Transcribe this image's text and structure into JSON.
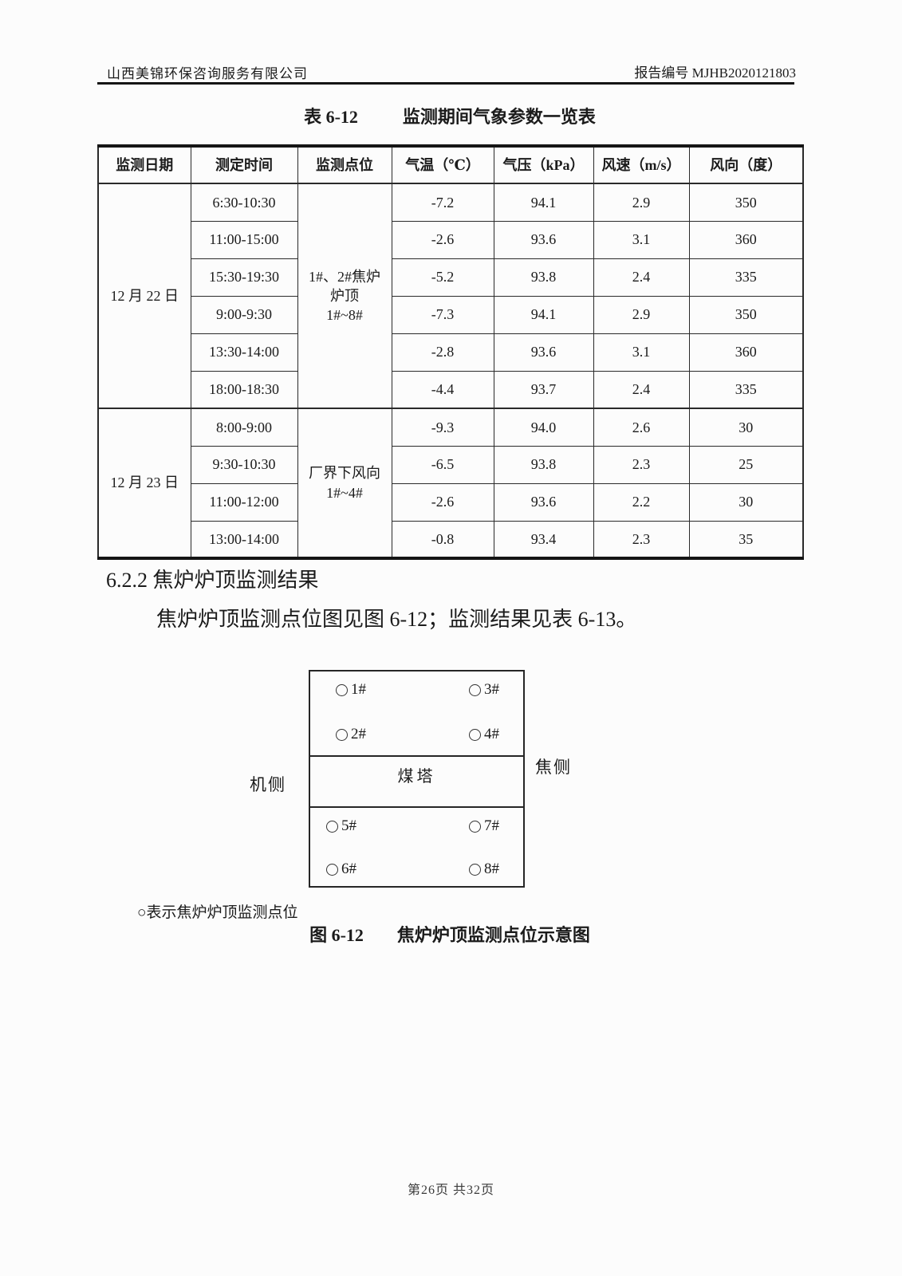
{
  "header": {
    "company": "山西美锦环保咨询服务有限公司",
    "report_no": "报告编号 MJHB2020121803"
  },
  "table": {
    "label": "表 6-12",
    "title": "监测期间气象参数一览表",
    "columns": [
      "监测日期",
      "测定时间",
      "监测点位",
      "气温（℃）",
      "气压（kPa）",
      "风速（m/s）",
      "风向（度）"
    ],
    "groups": [
      {
        "date": "12 月 22 日",
        "site": "1#、2#焦炉\n炉顶\n1#~8#",
        "rows": [
          {
            "time": "6:30-10:30",
            "temp": "-7.2",
            "pressure": "94.1",
            "wind_speed": "2.9",
            "wind_dir": "350"
          },
          {
            "time": "11:00-15:00",
            "temp": "-2.6",
            "pressure": "93.6",
            "wind_speed": "3.1",
            "wind_dir": "360"
          },
          {
            "time": "15:30-19:30",
            "temp": "-5.2",
            "pressure": "93.8",
            "wind_speed": "2.4",
            "wind_dir": "335"
          },
          {
            "time": "9:00-9:30",
            "temp": "-7.3",
            "pressure": "94.1",
            "wind_speed": "2.9",
            "wind_dir": "350"
          },
          {
            "time": "13:30-14:00",
            "temp": "-2.8",
            "pressure": "93.6",
            "wind_speed": "3.1",
            "wind_dir": "360"
          },
          {
            "time": "18:00-18:30",
            "temp": "-4.4",
            "pressure": "93.7",
            "wind_speed": "2.4",
            "wind_dir": "335"
          }
        ]
      },
      {
        "date": "12 月 23 日",
        "site": "厂界下风向\n1#~4#",
        "rows": [
          {
            "time": "8:00-9:00",
            "temp": "-9.3",
            "pressure": "94.0",
            "wind_speed": "2.6",
            "wind_dir": "30"
          },
          {
            "time": "9:30-10:30",
            "temp": "-6.5",
            "pressure": "93.8",
            "wind_speed": "2.3",
            "wind_dir": "25"
          },
          {
            "time": "11:00-12:00",
            "temp": "-2.6",
            "pressure": "93.6",
            "wind_speed": "2.2",
            "wind_dir": "30"
          },
          {
            "time": "13:00-14:00",
            "temp": "-0.8",
            "pressure": "93.4",
            "wind_speed": "2.3",
            "wind_dir": "35"
          }
        ]
      }
    ]
  },
  "section": {
    "heading": "6.2.2 焦炉炉顶监测结果",
    "paragraph": "焦炉炉顶监测点位图见图 6-12；监测结果见表 6-13。"
  },
  "figure": {
    "machine_side": "机侧",
    "coke_side": "焦侧",
    "coal_tower": "煤塔",
    "points": [
      "1#",
      "2#",
      "3#",
      "4#",
      "5#",
      "6#",
      "7#",
      "8#"
    ],
    "legend": "○表示焦炉炉顶监测点位",
    "caption_label": "图 6-12",
    "caption_title": "焦炉炉顶监测点位示意图"
  },
  "footer": {
    "page_info": "第26页 共32页"
  }
}
